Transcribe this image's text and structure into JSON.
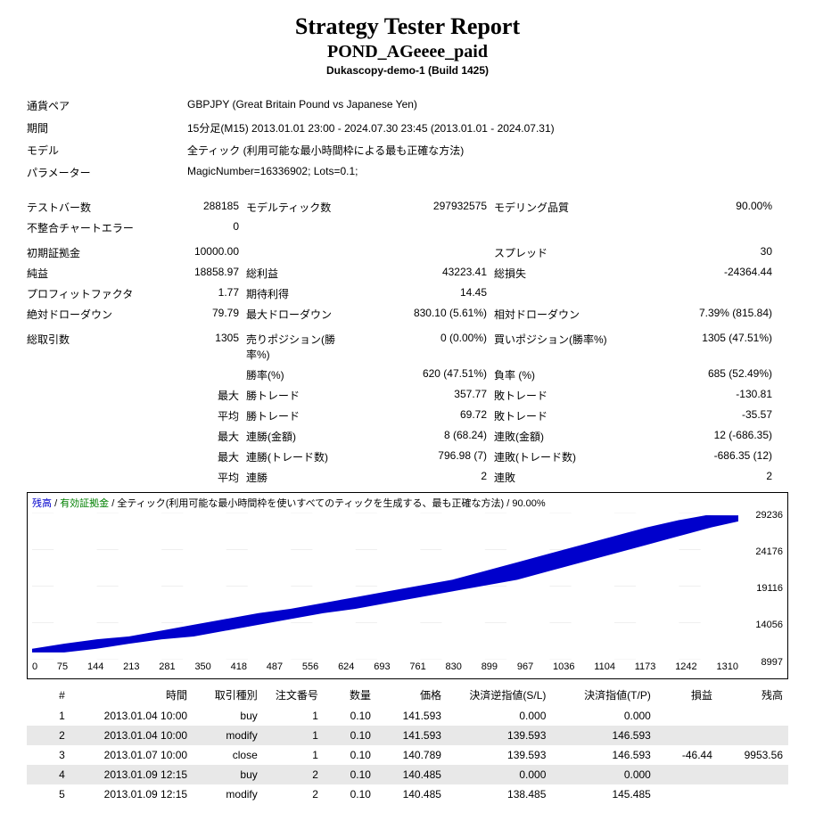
{
  "header": {
    "title": "Strategy Tester Report",
    "subtitle": "POND_AGeeee_paid",
    "subtitle2": "Dukascopy-demo-1 (Build 1425)"
  },
  "info": {
    "rows": [
      {
        "label": "通貨ペア",
        "value": "GBPJPY (Great Britain Pound vs Japanese Yen)"
      },
      {
        "label": "期間",
        "value": "15分足(M15) 2013.01.01 23:00 - 2024.07.30 23:45 (2013.01.01 - 2024.07.31)"
      },
      {
        "label": "モデル",
        "value": "全ティック (利用可能な最小時間枠による最も正確な方法)"
      },
      {
        "label": "パラメーター",
        "value": "MagicNumber=16336902; Lots=0.1;"
      }
    ]
  },
  "stats": {
    "groups": [
      [
        {
          "c1": "テストバー数",
          "c2": "288185",
          "c3": "モデルティック数",
          "c4": "297932575",
          "c5": "モデリング品質",
          "c6": "90.00%"
        },
        {
          "c1": "不整合チャートエラー",
          "c2": "0",
          "c3": "",
          "c4": "",
          "c5": "",
          "c6": ""
        }
      ],
      [
        {
          "c1": "初期証拠金",
          "c2": "10000.00",
          "c3": "",
          "c4": "",
          "c5": "スプレッド",
          "c6": "30"
        },
        {
          "c1": "純益",
          "c2": "18858.97",
          "c3": "総利益",
          "c4": "43223.41",
          "c5": "総損失",
          "c6": "-24364.44"
        },
        {
          "c1": "プロフィットファクタ",
          "c2": "1.77",
          "c3": "期待利得",
          "c4": "14.45",
          "c5": "",
          "c6": ""
        },
        {
          "c1": "絶対ドローダウン",
          "c2": "79.79",
          "c3": "最大ドローダウン",
          "c4": "830.10 (5.61%)",
          "c5": "相対ドローダウン",
          "c6": "7.39% (815.84)"
        }
      ],
      [
        {
          "c1": "総取引数",
          "c2": "1305",
          "c3": "売りポジション(勝率%)",
          "c4": "0 (0.00%)",
          "c5": "買いポジション(勝率%)",
          "c6": "1305 (47.51%)"
        },
        {
          "c1": "",
          "c2": "",
          "c3": "勝率(%)",
          "c4": "620 (47.51%)",
          "c5": "負率 (%)",
          "c6": "685 (52.49%)"
        },
        {
          "c1": "",
          "c2": "最大",
          "c3": "勝トレード",
          "c4": "357.77",
          "c5": "敗トレード",
          "c6": "-130.81"
        },
        {
          "c1": "",
          "c2": "平均",
          "c3": "勝トレード",
          "c4": "69.72",
          "c5": "敗トレード",
          "c6": "-35.57"
        },
        {
          "c1": "",
          "c2": "最大",
          "c3": "連勝(金額)",
          "c4": "8 (68.24)",
          "c5": "連敗(金額)",
          "c6": "12 (-686.35)"
        },
        {
          "c1": "",
          "c2": "最大",
          "c3": "連勝(トレード数)",
          "c4": "796.98 (7)",
          "c5": "連敗(トレード数)",
          "c6": "-686.35 (12)"
        },
        {
          "c1": "",
          "c2": "平均",
          "c3": "連勝",
          "c4": "2",
          "c5": "連敗",
          "c6": "2"
        }
      ]
    ]
  },
  "chart": {
    "legend_balance": "残高",
    "legend_equity": "有効証拠金",
    "legend_rest": " / 全ティック(利用可能な最小時間枠を使いすべてのティックを生成する、最も正確な方法) / 90.00%",
    "ymin": 8997,
    "ymax": 29236,
    "yticks": [
      "29236",
      "24176",
      "19116",
      "14056",
      "8997"
    ],
    "xticks": [
      "0",
      "75",
      "144",
      "213",
      "281",
      "350",
      "418",
      "487",
      "556",
      "624",
      "693",
      "761",
      "830",
      "899",
      "967",
      "1036",
      "1104",
      "1173",
      "1242",
      "1310"
    ],
    "line_color": "#0000cc",
    "grid_color": "#c0c0c0",
    "series": [
      {
        "x": 0,
        "y": 10000
      },
      {
        "x": 60,
        "y": 10500
      },
      {
        "x": 120,
        "y": 11200
      },
      {
        "x": 180,
        "y": 11800
      },
      {
        "x": 240,
        "y": 12200
      },
      {
        "x": 300,
        "y": 13000
      },
      {
        "x": 360,
        "y": 13800
      },
      {
        "x": 420,
        "y": 14600
      },
      {
        "x": 480,
        "y": 15400
      },
      {
        "x": 540,
        "y": 16000
      },
      {
        "x": 600,
        "y": 16800
      },
      {
        "x": 660,
        "y": 17600
      },
      {
        "x": 720,
        "y": 18400
      },
      {
        "x": 780,
        "y": 19200
      },
      {
        "x": 840,
        "y": 20000
      },
      {
        "x": 900,
        "y": 21200
      },
      {
        "x": 960,
        "y": 22400
      },
      {
        "x": 1020,
        "y": 23600
      },
      {
        "x": 1080,
        "y": 24800
      },
      {
        "x": 1140,
        "y": 26000
      },
      {
        "x": 1200,
        "y": 27200
      },
      {
        "x": 1260,
        "y": 28200
      },
      {
        "x": 1310,
        "y": 28859
      }
    ]
  },
  "trades": {
    "headers": [
      "#",
      "時間",
      "取引種別",
      "注文番号",
      "数量",
      "価格",
      "決済逆指値(S/L)",
      "決済指値(T/P)",
      "損益",
      "残高"
    ],
    "rows": [
      {
        "n": "1",
        "time": "2013.01.04 10:00",
        "type": "buy",
        "order": "1",
        "lots": "0.10",
        "price": "141.593",
        "sl": "0.000",
        "tp": "0.000",
        "profit": "",
        "balance": ""
      },
      {
        "n": "2",
        "time": "2013.01.04 10:00",
        "type": "modify",
        "order": "1",
        "lots": "0.10",
        "price": "141.593",
        "sl": "139.593",
        "tp": "146.593",
        "profit": "",
        "balance": ""
      },
      {
        "n": "3",
        "time": "2013.01.07 10:00",
        "type": "close",
        "order": "1",
        "lots": "0.10",
        "price": "140.789",
        "sl": "139.593",
        "tp": "146.593",
        "profit": "-46.44",
        "balance": "9953.56"
      },
      {
        "n": "4",
        "time": "2013.01.09 12:15",
        "type": "buy",
        "order": "2",
        "lots": "0.10",
        "price": "140.485",
        "sl": "0.000",
        "tp": "0.000",
        "profit": "",
        "balance": ""
      },
      {
        "n": "5",
        "time": "2013.01.09 12:15",
        "type": "modify",
        "order": "2",
        "lots": "0.10",
        "price": "140.485",
        "sl": "138.485",
        "tp": "145.485",
        "profit": "",
        "balance": ""
      }
    ]
  }
}
